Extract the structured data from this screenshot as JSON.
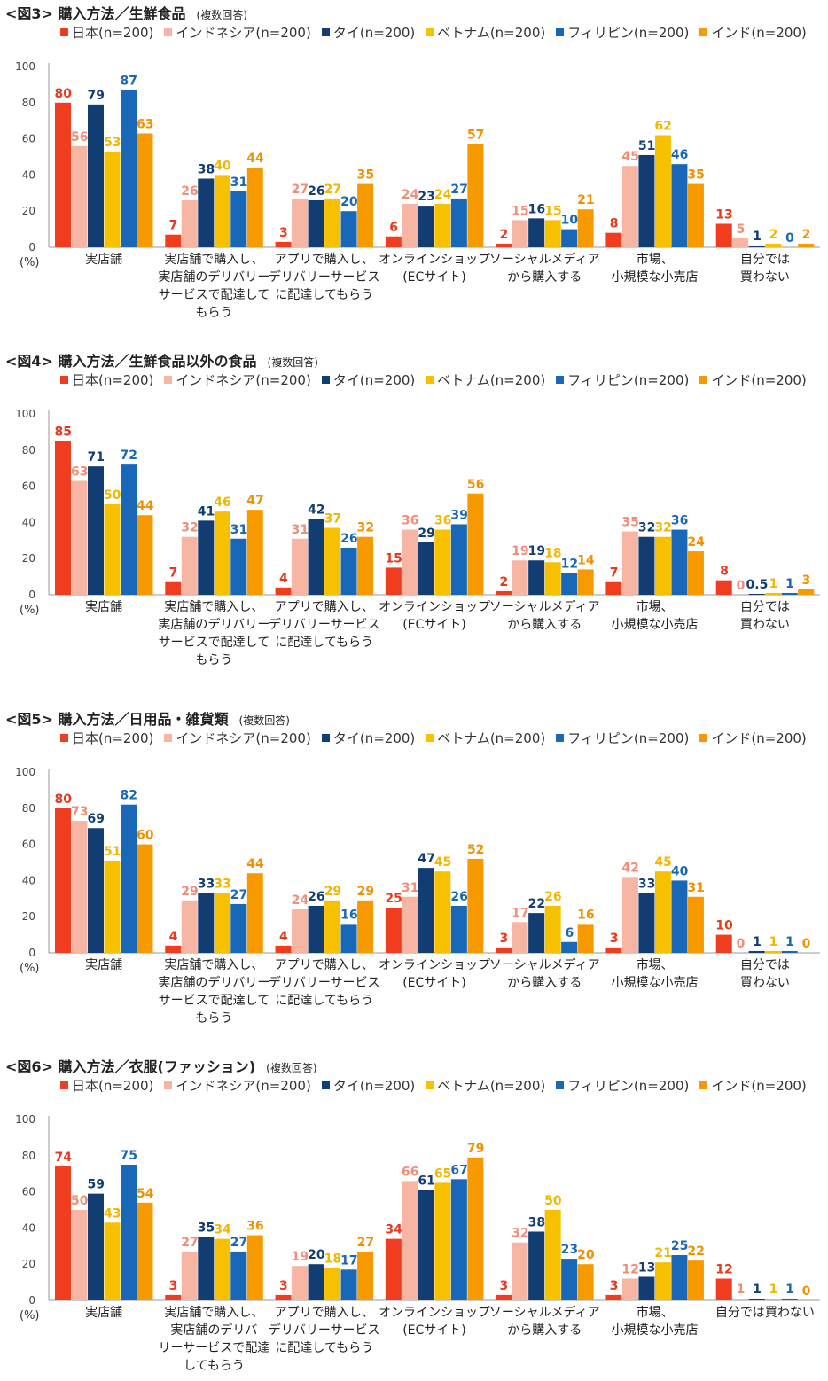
{
  "unit_label": "(%)",
  "series_colors": [
    "#f03c1f",
    "#f7b5a4",
    "#123d73",
    "#f7c100",
    "#1868b7",
    "#f79a00"
  ],
  "label_colors": [
    "#e8381d",
    "#f08e78",
    "#123d73",
    "#f2b700",
    "#1868b7",
    "#f29100"
  ],
  "chart_data": [
    {
      "type": "bar",
      "title": "<図3> 購入方法／生鮮食品",
      "note": "(複数回答)",
      "ylim": [
        0,
        100
      ],
      "yticks": [
        "0",
        "20",
        "40",
        "60",
        "80",
        "100"
      ],
      "categories": [
        "実店舗",
        "実店舗で購入し、\n実店舗のデリバリー\nサービスで配達して\nもらう",
        "アプリで購入し、\nデリバリーサービス\nに配達してもらう",
        "オンラインショップ\n(ECサイト)",
        "ソーシャルメディア\nから購入する",
        "市場、\n小規模な小売店",
        "自分では\n買わない"
      ],
      "series": [
        {
          "name": "日本(n=200)",
          "values": [
            80,
            7,
            3,
            6,
            2,
            8,
            13
          ],
          "labels": [
            "80",
            "7",
            "3",
            "6",
            "2",
            "8",
            "13"
          ]
        },
        {
          "name": "インドネシア(n=200)",
          "values": [
            56,
            26,
            27,
            24,
            15,
            45,
            5
          ],
          "labels": [
            "56",
            "26",
            "27",
            "24",
            "15",
            "45",
            "5"
          ]
        },
        {
          "name": "タイ(n=200)",
          "values": [
            79,
            38,
            26,
            23,
            16,
            51,
            1
          ],
          "labels": [
            "79",
            "38",
            "26",
            "23",
            "16",
            "51",
            "1"
          ]
        },
        {
          "name": "ベトナム(n=200)",
          "values": [
            53,
            40,
            27,
            24,
            15,
            62,
            2
          ],
          "labels": [
            "53",
            "40",
            "27",
            "24",
            "15",
            "62",
            "2"
          ]
        },
        {
          "name": "フィリピン(n=200)",
          "values": [
            87,
            31,
            20,
            27,
            10,
            46,
            0
          ],
          "labels": [
            "87",
            "31",
            "20",
            "27",
            "10",
            "46",
            "0"
          ]
        },
        {
          "name": "インド(n=200)",
          "values": [
            63,
            44,
            35,
            57,
            21,
            35,
            2
          ],
          "labels": [
            "63",
            "44",
            "35",
            "57",
            "21",
            "35",
            "2"
          ]
        }
      ]
    },
    {
      "type": "bar",
      "title": "<図4> 購入方法／生鮮食品以外の食品",
      "note": "(複数回答)",
      "ylim": [
        0,
        100
      ],
      "yticks": [
        "0",
        "20",
        "40",
        "60",
        "80",
        "100"
      ],
      "categories": [
        "実店舗",
        "実店舗で購入し、\n実店舗のデリバリー\nサービスで配達して\nもらう",
        "アプリで購入し、\nデリバリーサービス\nに配達してもらう",
        "オンラインショップ\n(ECサイト)",
        "ソーシャルメディア\nから購入する",
        "市場、\n小規模な小売店",
        "自分では\n買わない"
      ],
      "series": [
        {
          "name": "日本(n=200)",
          "values": [
            85,
            7,
            4,
            15,
            2,
            7,
            8
          ],
          "labels": [
            "85",
            "7",
            "4",
            "15",
            "2",
            "7",
            "8"
          ]
        },
        {
          "name": "インドネシア(n=200)",
          "values": [
            63,
            32,
            31,
            36,
            19,
            35,
            0
          ],
          "labels": [
            "63",
            "32",
            "31",
            "36",
            "19",
            "35",
            "0"
          ]
        },
        {
          "name": "タイ(n=200)",
          "values": [
            71,
            41,
            42,
            29,
            19,
            32,
            0.5
          ],
          "labels": [
            "71",
            "41",
            "42",
            "29",
            "19",
            "32",
            "0.5"
          ]
        },
        {
          "name": "ベトナム(n=200)",
          "values": [
            50,
            46,
            37,
            36,
            18,
            32,
            1
          ],
          "labels": [
            "50",
            "46",
            "37",
            "36",
            "18",
            "32",
            "1"
          ]
        },
        {
          "name": "フィリピン(n=200)",
          "values": [
            72,
            31,
            26,
            39,
            12,
            36,
            1
          ],
          "labels": [
            "72",
            "31",
            "26",
            "39",
            "12",
            "36",
            "1"
          ]
        },
        {
          "name": "インド(n=200)",
          "values": [
            44,
            47,
            32,
            56,
            14,
            24,
            3
          ],
          "labels": [
            "44",
            "47",
            "32",
            "56",
            "14",
            "24",
            "3"
          ]
        }
      ]
    },
    {
      "type": "bar",
      "title": "<図5> 購入方法／日用品・雑貨類",
      "note": "(複数回答)",
      "ylim": [
        0,
        100
      ],
      "yticks": [
        "0",
        "20",
        "40",
        "60",
        "80",
        "100"
      ],
      "categories": [
        "実店舗",
        "実店舗で購入し、\n実店舗のデリバリー\nサービスで配達して\nもらう",
        "アプリで購入し、\nデリバリーサービス\nに配達してもらう",
        "オンラインショップ\n(ECサイト)",
        "ソーシャルメディア\nから購入する",
        "市場、\n小規模な小売店",
        "自分では\n買わない"
      ],
      "series": [
        {
          "name": "日本(n=200)",
          "values": [
            80,
            4,
            4,
            25,
            3,
            3,
            10
          ],
          "labels": [
            "80",
            "4",
            "4",
            "25",
            "3",
            "3",
            "10"
          ]
        },
        {
          "name": "インドネシア(n=200)",
          "values": [
            73,
            29,
            24,
            31,
            17,
            42,
            0
          ],
          "labels": [
            "73",
            "29",
            "24",
            "31",
            "17",
            "42",
            "0"
          ]
        },
        {
          "name": "タイ(n=200)",
          "values": [
            69,
            33,
            26,
            47,
            22,
            33,
            1
          ],
          "labels": [
            "69",
            "33",
            "26",
            "47",
            "22",
            "33",
            "1"
          ]
        },
        {
          "name": "ベトナム(n=200)",
          "values": [
            51,
            33,
            29,
            45,
            26,
            45,
            1
          ],
          "labels": [
            "51",
            "33",
            "29",
            "45",
            "26",
            "45",
            "1"
          ]
        },
        {
          "name": "フィリピン(n=200)",
          "values": [
            82,
            27,
            16,
            26,
            6,
            40,
            1
          ],
          "labels": [
            "82",
            "27",
            "16",
            "26",
            "6",
            "40",
            "1"
          ]
        },
        {
          "name": "インド(n=200)",
          "values": [
            60,
            44,
            29,
            52,
            16,
            31,
            0
          ],
          "labels": [
            "60",
            "44",
            "29",
            "52",
            "16",
            "31",
            "0"
          ]
        }
      ]
    },
    {
      "type": "bar",
      "title": "<図6> 購入方法／衣服(ファッション)",
      "note": "(複数回答)",
      "ylim": [
        0,
        100
      ],
      "yticks": [
        "0",
        "20",
        "40",
        "60",
        "80",
        "100"
      ],
      "categories": [
        "実店舗",
        "実店舗で購入し、\n実店舗のデリバ\nリーサービスで配達\nしてもらう",
        "アプリで購入し、\nデリバリーサービス\nに配達してもらう",
        "オンラインショップ\n(ECサイト)",
        "ソーシャルメディア\nから購入する",
        "市場、\n小規模な小売店",
        "自分では買わない"
      ],
      "series": [
        {
          "name": "日本(n=200)",
          "values": [
            74,
            3,
            3,
            34,
            3,
            3,
            12
          ],
          "labels": [
            "74",
            "3",
            "3",
            "34",
            "3",
            "3",
            "12"
          ]
        },
        {
          "name": "インドネシア(n=200)",
          "values": [
            50,
            27,
            19,
            66,
            32,
            12,
            1
          ],
          "labels": [
            "50",
            "27",
            "19",
            "66",
            "32",
            "12",
            "1"
          ]
        },
        {
          "name": "タイ(n=200)",
          "values": [
            59,
            35,
            20,
            61,
            38,
            13,
            1
          ],
          "labels": [
            "59",
            "35",
            "20",
            "61",
            "38",
            "13",
            "1"
          ]
        },
        {
          "name": "ベトナム(n=200)",
          "values": [
            43,
            34,
            18,
            65,
            50,
            21,
            1
          ],
          "labels": [
            "43",
            "34",
            "18",
            "65",
            "50",
            "21",
            "1"
          ]
        },
        {
          "name": "フィリピン(n=200)",
          "values": [
            75,
            27,
            17,
            67,
            23,
            25,
            1
          ],
          "labels": [
            "75",
            "27",
            "17",
            "67",
            "23",
            "25",
            "1"
          ]
        },
        {
          "name": "インド(n=200)",
          "values": [
            54,
            36,
            27,
            79,
            20,
            22,
            0
          ],
          "labels": [
            "54",
            "36",
            "27",
            "79",
            "20",
            "22",
            "0"
          ]
        }
      ]
    }
  ]
}
